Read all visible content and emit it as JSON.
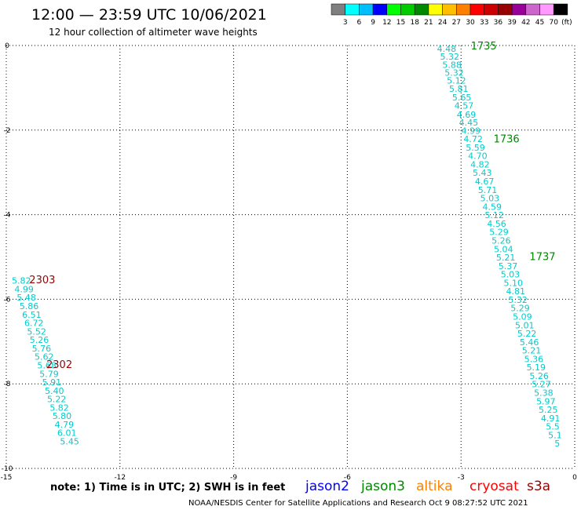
{
  "header": {
    "title": "12:00 — 23:59 UTC 10/06/2021",
    "subtitle": "12 hour collection of altimeter wave heights"
  },
  "color_scale": {
    "colors": [
      "#7f7f7f",
      "#00ffff",
      "#00bfff",
      "#0000ff",
      "#00ff00",
      "#00cc00",
      "#008800",
      "#ffff00",
      "#ffbf00",
      "#ff8000",
      "#ff0000",
      "#cc0000",
      "#990000",
      "#990099",
      "#cc66cc",
      "#ff99ff",
      "#000000"
    ],
    "labels": [
      "3",
      "6",
      "9",
      "12",
      "15",
      "18",
      "21",
      "24",
      "27",
      "30",
      "33",
      "36",
      "39",
      "42",
      "45",
      "70"
    ],
    "unit": "(ft)"
  },
  "footer": {
    "note": "note:  1) Time is in UTC;  2) SWH is in feet",
    "satellites": [
      {
        "name": "jason2",
        "color": "#0000ff"
      },
      {
        "name": "jason3",
        "color": "#008800"
      },
      {
        "name": "altika",
        "color": "#ff8000"
      },
      {
        "name": "cryosat",
        "color": "#ff0000"
      },
      {
        "name": "s3a",
        "color": "#990000"
      }
    ],
    "credit": "NOAA/NESDIS Center for Satellite Applications and Research    Oct  9 08:27:52 UTC 2021"
  },
  "chart_data": {
    "type": "scatter",
    "xlim": [
      -15,
      0
    ],
    "ylim": [
      -10,
      0
    ],
    "x_ticks": [
      "-15",
      "-12",
      "-9",
      "-6",
      "-3",
      "0"
    ],
    "y_ticks": [
      "0",
      "-2",
      "-4",
      "-6",
      "-8",
      "-10"
    ],
    "grid": true,
    "tracks": [
      {
        "satellite": "jason3",
        "value_color": "#00cccc",
        "points": [
          {
            "x": -3.38,
            "y": -0.07,
            "v": "4.48"
          },
          {
            "x": -3.3,
            "y": -0.26,
            "v": "5.32"
          },
          {
            "x": -3.24,
            "y": -0.45,
            "v": "5.88"
          },
          {
            "x": -3.18,
            "y": -0.64,
            "v": "5.32"
          },
          {
            "x": -3.12,
            "y": -0.83,
            "v": "5.12"
          },
          {
            "x": -3.06,
            "y": -1.02,
            "v": "5.81"
          },
          {
            "x": -2.98,
            "y": -1.22,
            "v": "5.65"
          },
          {
            "x": -2.92,
            "y": -1.42,
            "v": "4.57"
          },
          {
            "x": -2.86,
            "y": -1.63,
            "v": "4.69"
          },
          {
            "x": -2.8,
            "y": -1.82,
            "v": "4.45"
          },
          {
            "x": -2.74,
            "y": -2.01,
            "v": "4.99"
          },
          {
            "x": -2.68,
            "y": -2.21,
            "v": "4.72"
          },
          {
            "x": -2.62,
            "y": -2.41,
            "v": "5.59"
          },
          {
            "x": -2.56,
            "y": -2.61,
            "v": "4.70"
          },
          {
            "x": -2.5,
            "y": -2.81,
            "v": "4.82"
          },
          {
            "x": -2.44,
            "y": -3.01,
            "v": "5.43"
          },
          {
            "x": -2.38,
            "y": -3.21,
            "v": "4.67"
          },
          {
            "x": -2.3,
            "y": -3.41,
            "v": "5.71"
          },
          {
            "x": -2.24,
            "y": -3.61,
            "v": "5.03"
          },
          {
            "x": -2.18,
            "y": -3.81,
            "v": "4.59"
          },
          {
            "x": -2.12,
            "y": -4.01,
            "v": "5.12"
          },
          {
            "x": -2.06,
            "y": -4.21,
            "v": "4.56"
          },
          {
            "x": -2.0,
            "y": -4.41,
            "v": "5.29"
          },
          {
            "x": -1.94,
            "y": -4.61,
            "v": "5.26"
          },
          {
            "x": -1.88,
            "y": -4.81,
            "v": "5.04"
          },
          {
            "x": -1.82,
            "y": -5.01,
            "v": "5.21"
          },
          {
            "x": -1.76,
            "y": -5.21,
            "v": "5.37"
          },
          {
            "x": -1.7,
            "y": -5.41,
            "v": "5.03"
          },
          {
            "x": -1.62,
            "y": -5.61,
            "v": "5.10"
          },
          {
            "x": -1.56,
            "y": -5.81,
            "v": "4.81"
          },
          {
            "x": -1.5,
            "y": -6.01,
            "v": "5.32"
          },
          {
            "x": -1.44,
            "y": -6.21,
            "v": "5.29"
          },
          {
            "x": -1.38,
            "y": -6.41,
            "v": "5.09"
          },
          {
            "x": -1.32,
            "y": -6.61,
            "v": "5.01"
          },
          {
            "x": -1.26,
            "y": -6.81,
            "v": "5.22"
          },
          {
            "x": -1.2,
            "y": -7.01,
            "v": "5.46"
          },
          {
            "x": -1.14,
            "y": -7.21,
            "v": "5.21"
          },
          {
            "x": -1.08,
            "y": -7.41,
            "v": "5.36"
          },
          {
            "x": -1.02,
            "y": -7.61,
            "v": "5.19"
          },
          {
            "x": -0.94,
            "y": -7.81,
            "v": "5.26"
          },
          {
            "x": -0.88,
            "y": -8.01,
            "v": "5.27"
          },
          {
            "x": -0.82,
            "y": -8.21,
            "v": "5.38"
          },
          {
            "x": -0.76,
            "y": -8.41,
            "v": "5.97"
          },
          {
            "x": -0.7,
            "y": -8.61,
            "v": "5.25"
          },
          {
            "x": -0.64,
            "y": -8.81,
            "v": "4.91"
          },
          {
            "x": -0.58,
            "y": -9.01,
            "v": "5.5"
          },
          {
            "x": -0.52,
            "y": -9.21,
            "v": "5.1"
          },
          {
            "x": -0.46,
            "y": -9.41,
            "v": "5"
          }
        ],
        "time_labels": [
          {
            "x": -2.4,
            "y": -0.02,
            "t": "1735"
          },
          {
            "x": -1.8,
            "y": -2.22,
            "t": "1736"
          },
          {
            "x": -0.85,
            "y": -5.0,
            "t": "1737"
          }
        ]
      },
      {
        "satellite": "s3a",
        "value_color": "#00cccc",
        "points": [
          {
            "x": -14.6,
            "y": -5.56,
            "v": "5.82"
          },
          {
            "x": -14.53,
            "y": -5.76,
            "v": "4.99"
          },
          {
            "x": -14.47,
            "y": -5.96,
            "v": "5.48"
          },
          {
            "x": -14.4,
            "y": -6.16,
            "v": "5.86"
          },
          {
            "x": -14.33,
            "y": -6.36,
            "v": "6.51"
          },
          {
            "x": -14.27,
            "y": -6.56,
            "v": "6.72"
          },
          {
            "x": -14.2,
            "y": -6.76,
            "v": "5.52"
          },
          {
            "x": -14.13,
            "y": -6.96,
            "v": "5.26"
          },
          {
            "x": -14.07,
            "y": -7.16,
            "v": "5.76"
          },
          {
            "x": -14.0,
            "y": -7.36,
            "v": "5.62"
          },
          {
            "x": -13.93,
            "y": -7.56,
            "v": "5.68"
          },
          {
            "x": -13.87,
            "y": -7.76,
            "v": "5.79"
          },
          {
            "x": -13.8,
            "y": -7.96,
            "v": "5.91"
          },
          {
            "x": -13.73,
            "y": -8.16,
            "v": "5.40"
          },
          {
            "x": -13.67,
            "y": -8.36,
            "v": "5.22"
          },
          {
            "x": -13.6,
            "y": -8.56,
            "v": "5.82"
          },
          {
            "x": -13.53,
            "y": -8.76,
            "v": "5.80"
          },
          {
            "x": -13.47,
            "y": -8.96,
            "v": "4.79"
          },
          {
            "x": -13.4,
            "y": -9.16,
            "v": "6.01"
          },
          {
            "x": -13.33,
            "y": -9.36,
            "v": "5.45"
          }
        ],
        "time_labels": [
          {
            "x": -14.05,
            "y": -5.55,
            "t": "2303"
          },
          {
            "x": -13.6,
            "y": -7.55,
            "t": "2302"
          }
        ]
      }
    ]
  }
}
